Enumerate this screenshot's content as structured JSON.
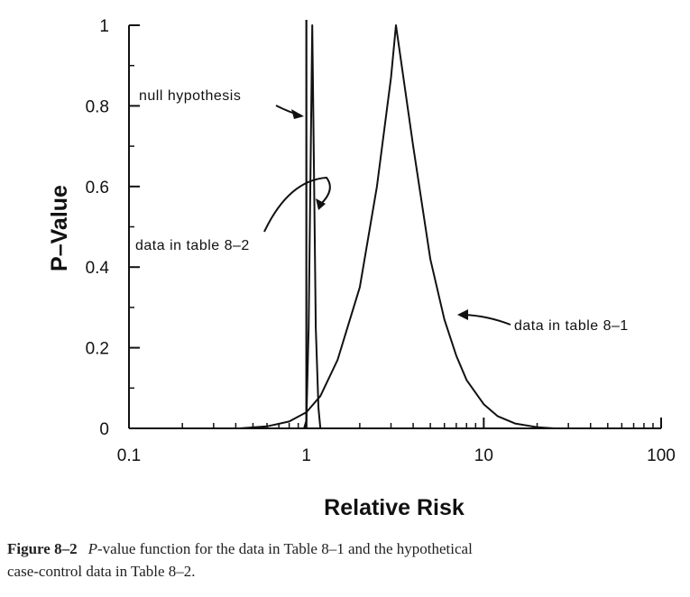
{
  "chart_data": {
    "type": "line",
    "xlabel": "Relative Risk",
    "ylabel": "P–Value",
    "xscale": "log",
    "xlim": [
      0.1,
      100
    ],
    "ylim": [
      0,
      1
    ],
    "x_ticks": [
      "0.1",
      "1",
      "10",
      "100"
    ],
    "y_ticks": [
      "0",
      "0.2",
      "0.4",
      "0.6",
      "0.8",
      "1"
    ],
    "grid": false,
    "null_value": 1,
    "series": [
      {
        "name": "data in table 8–1",
        "points": [
          [
            0.42,
            0
          ],
          [
            0.6,
            0.005
          ],
          [
            0.8,
            0.017
          ],
          [
            1.0,
            0.04
          ],
          [
            1.2,
            0.08
          ],
          [
            1.5,
            0.17
          ],
          [
            2.0,
            0.35
          ],
          [
            2.5,
            0.6
          ],
          [
            3.0,
            0.87
          ],
          [
            3.2,
            1.0
          ],
          [
            4.0,
            0.7
          ],
          [
            5.0,
            0.42
          ],
          [
            6.0,
            0.27
          ],
          [
            7.0,
            0.18
          ],
          [
            8.0,
            0.12
          ],
          [
            10.0,
            0.06
          ],
          [
            12.0,
            0.03
          ],
          [
            15.0,
            0.012
          ],
          [
            20.0,
            0.003
          ],
          [
            25.0,
            0
          ]
        ]
      },
      {
        "name": "data in table 8–2",
        "points": [
          [
            0.97,
            0
          ],
          [
            1.0,
            0.02
          ],
          [
            1.03,
            0.25
          ],
          [
            1.06,
            0.7
          ],
          [
            1.08,
            1.0
          ],
          [
            1.1,
            0.7
          ],
          [
            1.13,
            0.25
          ],
          [
            1.17,
            0.05
          ],
          [
            1.2,
            0
          ]
        ]
      }
    ],
    "annotations": [
      {
        "text": "null hypothesis"
      },
      {
        "text": "data in table 8–2"
      },
      {
        "text": "data in table 8–1"
      }
    ]
  },
  "caption": {
    "figure_label": "Figure 8–2",
    "italic_word": "P",
    "text_line1": "-value function for the data in Table 8–1 and the hypothetical",
    "text_line2": "case-control data in Table 8–2."
  }
}
